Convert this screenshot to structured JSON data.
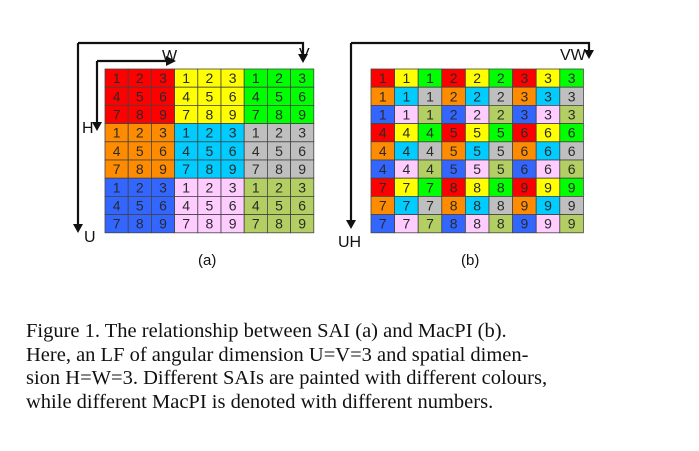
{
  "panel_a": {
    "label": "(a)",
    "axis_w": "W",
    "axis_v": "V",
    "axis_h": "H",
    "axis_u": "U",
    "rows": [
      [
        "1",
        "2",
        "3",
        "1",
        "2",
        "3",
        "1",
        "2",
        "3"
      ],
      [
        "4",
        "5",
        "6",
        "4",
        "5",
        "6",
        "4",
        "5",
        "6"
      ],
      [
        "7",
        "8",
        "9",
        "7",
        "8",
        "9",
        "7",
        "8",
        "9"
      ],
      [
        "1",
        "2",
        "3",
        "1",
        "2",
        "3",
        "1",
        "2",
        "3"
      ],
      [
        "4",
        "5",
        "6",
        "4",
        "5",
        "6",
        "4",
        "5",
        "6"
      ],
      [
        "7",
        "8",
        "9",
        "7",
        "8",
        "9",
        "7",
        "8",
        "9"
      ],
      [
        "1",
        "2",
        "3",
        "1",
        "2",
        "3",
        "1",
        "2",
        "3"
      ],
      [
        "4",
        "5",
        "6",
        "4",
        "5",
        "6",
        "4",
        "5",
        "6"
      ],
      [
        "7",
        "8",
        "9",
        "7",
        "8",
        "9",
        "7",
        "8",
        "9"
      ]
    ]
  },
  "panel_b": {
    "label": "(b)",
    "axis_vw": "VW",
    "axis_uh": "UH",
    "rows": [
      [
        "1",
        "1",
        "1",
        "2",
        "2",
        "2",
        "3",
        "3",
        "3"
      ],
      [
        "1",
        "1",
        "1",
        "2",
        "2",
        "2",
        "3",
        "3",
        "3"
      ],
      [
        "1",
        "1",
        "1",
        "2",
        "2",
        "2",
        "3",
        "3",
        "3"
      ],
      [
        "4",
        "4",
        "4",
        "5",
        "5",
        "5",
        "6",
        "6",
        "6"
      ],
      [
        "4",
        "4",
        "4",
        "5",
        "5",
        "5",
        "6",
        "6",
        "6"
      ],
      [
        "4",
        "4",
        "4",
        "5",
        "5",
        "5",
        "6",
        "6",
        "6"
      ],
      [
        "7",
        "7",
        "7",
        "8",
        "8",
        "8",
        "9",
        "9",
        "9"
      ],
      [
        "7",
        "7",
        "7",
        "8",
        "8",
        "8",
        "9",
        "9",
        "9"
      ],
      [
        "7",
        "7",
        "7",
        "8",
        "8",
        "8",
        "9",
        "9",
        "9"
      ]
    ]
  },
  "colors": {
    "sai": [
      "#ff0000",
      "#ffff00",
      "#00ff00",
      "#ff8c00",
      "#00ccff",
      "#bfbfbf",
      "#3366ff",
      "#ffccff",
      "#b3cf63"
    ],
    "grid_line": "#444444",
    "arrow": "#111111"
  },
  "caption_lines": [
    "Figure 1.   The relationship between SAI (a) and MacPI (b).",
    "Here, an LF of angular dimension U=V=3 and spatial dimen-",
    "sion H=W=3. Different SAIs are painted with different colours,",
    "while different MacPI is denoted with different numbers."
  ]
}
